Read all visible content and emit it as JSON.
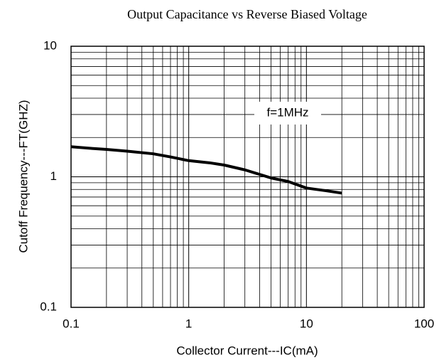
{
  "chart_data": {
    "type": "line",
    "title": "Output Capacitance vs Reverse Biased Voltage",
    "x_label": "Collector Current---IC(mA)",
    "y_label": "Cutoff Frequency---FT(GHZ)",
    "annotation": "f=1MHz",
    "x": [
      0.1,
      0.15,
      0.2,
      0.3,
      0.5,
      0.7,
      1,
      1.5,
      2,
      3,
      5,
      7,
      10,
      15,
      20
    ],
    "series": [
      {
        "name": "FT",
        "color": "#000000",
        "values": [
          1.7,
          1.65,
          1.62,
          1.57,
          1.5,
          1.42,
          1.33,
          1.28,
          1.23,
          1.13,
          0.98,
          0.92,
          0.82,
          0.78,
          0.75
        ]
      }
    ],
    "xlim": [
      0.1,
      100
    ],
    "ylim": [
      0.1,
      10
    ],
    "xticks": [
      0.1,
      1,
      10,
      100
    ],
    "yticks": [
      0.1,
      1,
      10
    ],
    "xlog": true,
    "ylog": true,
    "grid": true
  }
}
